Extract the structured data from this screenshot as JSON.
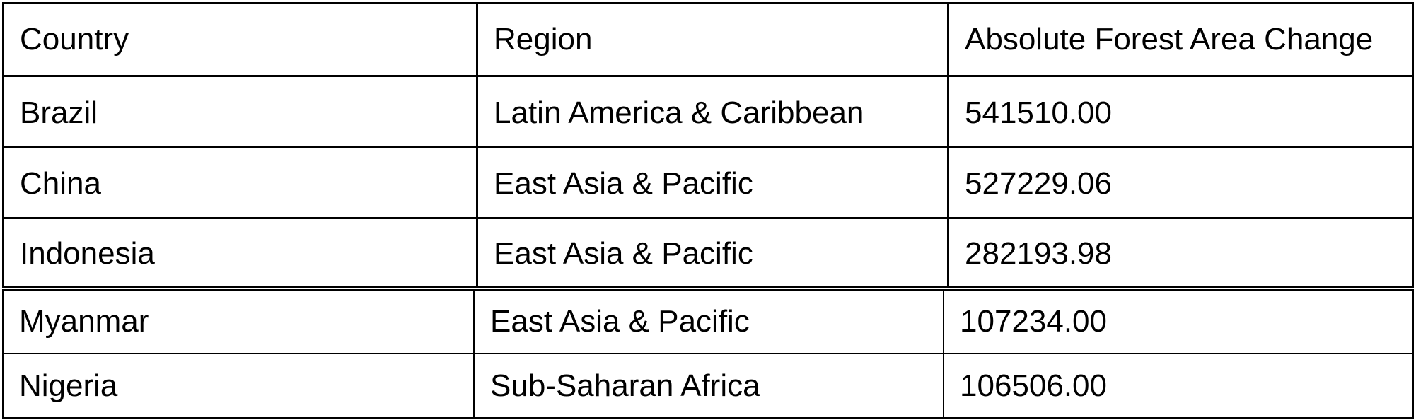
{
  "table": {
    "headers": [
      "Country",
      "Region",
      "Absolute Forest Area Change"
    ],
    "rows": [
      [
        "Brazil",
        "Latin America & Caribbean",
        "541510.00"
      ],
      [
        "China",
        "East Asia & Pacific",
        "527229.06"
      ],
      [
        "Indonesia",
        "East Asia & Pacific",
        "282193.98"
      ],
      [
        "Myanmar",
        "East Asia & Pacific",
        "107234.00"
      ],
      [
        "Nigeria",
        "Sub-Saharan Africa",
        "106506.00"
      ]
    ]
  }
}
